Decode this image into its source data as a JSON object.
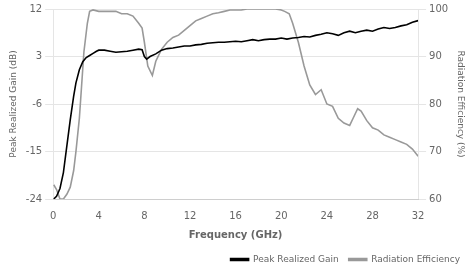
{
  "chart_data": {
    "type": "line",
    "xlabel": "Frequency (GHz)",
    "ylabel": "Peak Realized Gain (dB)",
    "y2label": "Radiation Efficiency (%)",
    "xlim": [
      0,
      32
    ],
    "xticks": [
      0,
      4,
      8,
      12,
      16,
      20,
      24,
      28,
      32
    ],
    "ylim": [
      -24,
      12
    ],
    "yticks": [
      -24,
      -15,
      -6,
      3,
      12
    ],
    "y2lim": [
      60,
      100
    ],
    "y2ticks": [
      60,
      70,
      80,
      90,
      100
    ],
    "grid": "y",
    "legend": "lower right",
    "series": [
      {
        "name": "Peak Realized Gain",
        "color": "#000000",
        "axis": "y",
        "x": [
          0.05,
          0.3,
          0.6,
          0.9,
          1.2,
          1.5,
          1.8,
          2.0,
          2.3,
          2.6,
          2.9,
          3.2,
          3.5,
          3.8,
          4.0,
          4.5,
          5.0,
          5.5,
          6.0,
          6.5,
          7.0,
          7.5,
          7.8,
          8.0,
          8.2,
          8.5,
          9.0,
          9.5,
          10.0,
          10.5,
          11.0,
          11.5,
          12.0,
          12.5,
          13.0,
          13.5,
          14.0,
          14.5,
          15.0,
          15.5,
          16.0,
          16.5,
          17.0,
          17.5,
          18.0,
          18.5,
          19.0,
          19.5,
          20.0,
          20.5,
          21.0,
          21.5,
          22.0,
          22.5,
          23.0,
          23.5,
          24.0,
          24.5,
          25.0,
          25.5,
          26.0,
          26.5,
          27.0,
          27.5,
          28.0,
          28.5,
          29.0,
          29.5,
          30.0,
          30.5,
          31.0,
          31.5,
          32.0
        ],
        "values": [
          -24.0,
          -23.5,
          -22.0,
          -19.0,
          -14.0,
          -9.0,
          -4.5,
          -2.0,
          0.5,
          2.0,
          2.8,
          3.2,
          3.6,
          4.0,
          4.2,
          4.2,
          4.0,
          3.8,
          3.9,
          4.0,
          4.2,
          4.4,
          4.3,
          3.0,
          2.5,
          3.0,
          3.5,
          4.2,
          4.5,
          4.6,
          4.8,
          5.0,
          5.0,
          5.2,
          5.3,
          5.5,
          5.6,
          5.7,
          5.7,
          5.8,
          5.9,
          5.8,
          6.0,
          6.2,
          6.0,
          6.2,
          6.3,
          6.3,
          6.5,
          6.3,
          6.5,
          6.6,
          6.8,
          6.7,
          7.0,
          7.2,
          7.5,
          7.3,
          7.0,
          7.5,
          7.8,
          7.5,
          7.8,
          8.0,
          7.8,
          8.2,
          8.5,
          8.3,
          8.5,
          8.8,
          9.0,
          9.5,
          9.8
        ]
      },
      {
        "name": "Radiation Efficiency",
        "color": "#999999",
        "axis": "y2",
        "x": [
          0.05,
          0.3,
          0.6,
          0.9,
          1.2,
          1.5,
          1.8,
          2.0,
          2.3,
          2.5,
          2.7,
          3.0,
          3.2,
          3.5,
          4.0,
          4.5,
          5.0,
          5.5,
          6.0,
          6.5,
          7.0,
          7.5,
          7.8,
          8.0,
          8.3,
          8.7,
          9.0,
          9.5,
          10.0,
          10.5,
          11.0,
          11.5,
          12.0,
          12.5,
          13.0,
          13.5,
          14.0,
          14.5,
          15.0,
          15.5,
          16.0,
          16.5,
          17.0,
          17.5,
          18.0,
          18.5,
          19.0,
          19.5,
          20.0,
          20.3,
          20.7,
          21.0,
          21.5,
          22.0,
          22.5,
          23.0,
          23.5,
          24.0,
          24.5,
          25.0,
          25.5,
          26.0,
          26.3,
          26.7,
          27.0,
          27.5,
          28.0,
          28.5,
          29.0,
          29.5,
          30.0,
          30.5,
          31.0,
          31.5,
          32.0
        ],
        "values": [
          63.0,
          62.0,
          60.0,
          60.0,
          61.0,
          62.5,
          66.0,
          70.0,
          77.0,
          84.0,
          91.0,
          97.0,
          99.5,
          99.8,
          99.5,
          99.5,
          99.5,
          99.5,
          99.0,
          99.0,
          98.5,
          97.0,
          96.0,
          93.0,
          88.0,
          86.0,
          89.0,
          91.5,
          93.0,
          94.0,
          94.5,
          95.5,
          96.5,
          97.5,
          98.0,
          98.5,
          99.0,
          99.2,
          99.5,
          99.8,
          99.8,
          99.8,
          100.0,
          100.0,
          100.0,
          100.0,
          100.0,
          100.0,
          99.8,
          99.5,
          99.0,
          97.0,
          93.0,
          88.0,
          84.0,
          82.0,
          83.0,
          80.0,
          79.5,
          77.0,
          76.0,
          75.5,
          77.0,
          79.0,
          78.5,
          76.5,
          75.0,
          74.5,
          73.5,
          73.0,
          72.5,
          72.0,
          71.5,
          70.5,
          69.0
        ]
      }
    ]
  }
}
